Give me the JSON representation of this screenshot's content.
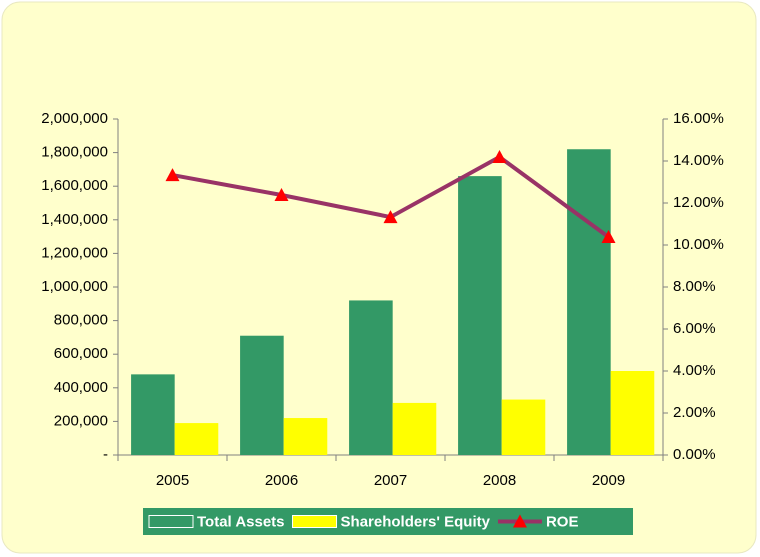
{
  "chart_data": {
    "type": "bar",
    "categories": [
      "2005",
      "2006",
      "2007",
      "2008",
      "2009"
    ],
    "series": [
      {
        "name": "Total Assets",
        "type": "bar",
        "color": "#339966",
        "values": [
          480000,
          710000,
          920000,
          1660000,
          1820000
        ]
      },
      {
        "name": "Shareholders' Equity",
        "type": "bar",
        "color": "#ffff00",
        "values": [
          190000,
          220000,
          310000,
          330000,
          500000
        ]
      },
      {
        "name": "ROE",
        "type": "line",
        "axis": "y2",
        "color": "#993366",
        "marker_color": "#ff0000",
        "values": [
          13.33,
          12.38,
          11.33,
          14.19,
          10.38
        ]
      }
    ],
    "ylim": [
      0,
      2000000
    ],
    "yticks": [
      {
        "value": 0,
        "label": "-"
      },
      {
        "value": 200000,
        "label": "200,000"
      },
      {
        "value": 400000,
        "label": "400,000"
      },
      {
        "value": 600000,
        "label": "600,000"
      },
      {
        "value": 800000,
        "label": "800,000"
      },
      {
        "value": 1000000,
        "label": "1,000,000"
      },
      {
        "value": 1200000,
        "label": "1,200,000"
      },
      {
        "value": 1400000,
        "label": "1,400,000"
      },
      {
        "value": 1600000,
        "label": "1,600,000"
      },
      {
        "value": 1800000,
        "label": "1,800,000"
      },
      {
        "value": 2000000,
        "label": "2,000,000"
      }
    ],
    "y2lim": [
      0,
      16
    ],
    "y2ticks": [
      {
        "value": 0,
        "label": "0.00%"
      },
      {
        "value": 2,
        "label": "2.00%"
      },
      {
        "value": 4,
        "label": "4.00%"
      },
      {
        "value": 6,
        "label": "6.00%"
      },
      {
        "value": 8,
        "label": "8.00%"
      },
      {
        "value": 10,
        "label": "10.00%"
      },
      {
        "value": 12,
        "label": "12.00%"
      },
      {
        "value": 14,
        "label": "14.00%"
      },
      {
        "value": 16,
        "label": "16.00%"
      }
    ],
    "legend": "bottom",
    "grid": false
  }
}
